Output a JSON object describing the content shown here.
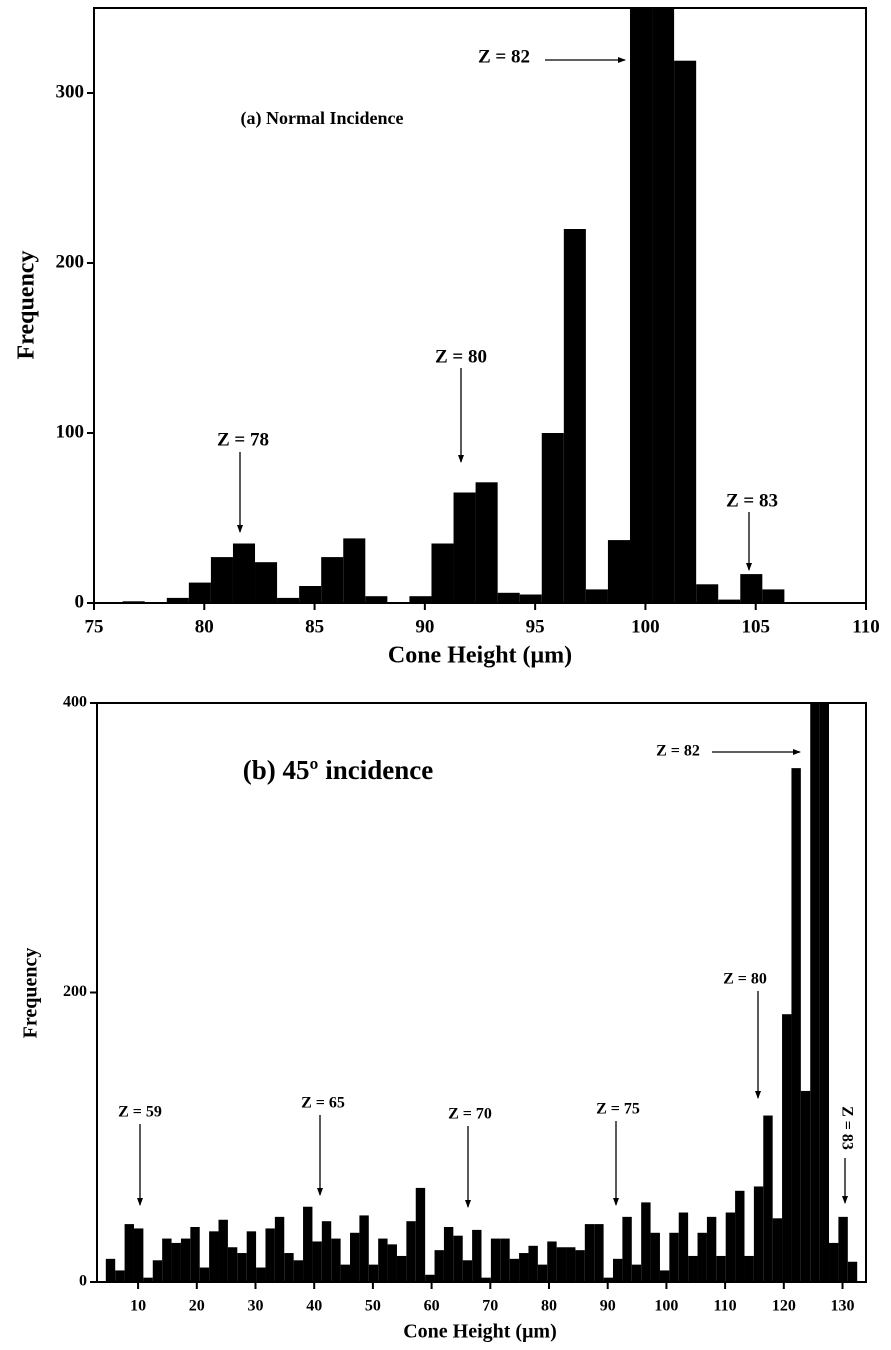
{
  "chart_data": [
    {
      "type": "histogram",
      "title": "(a) Normal Incidence",
      "x_label": "Cone Height (μm)",
      "y_label": "Frequency",
      "bins": [
        76.3,
        77.3,
        78.3,
        79.3,
        80.3,
        81.3,
        82.3,
        83.3,
        84.3,
        85.3,
        86.3,
        87.3,
        88.3,
        89.3,
        90.3,
        91.3,
        92.3,
        93.3,
        94.3,
        95.3,
        96.3,
        97.3,
        98.3,
        99.3,
        100.3,
        101.3,
        102.3,
        103.3,
        104.3,
        105.3,
        106.3
      ],
      "values": [
        1,
        0,
        3,
        12,
        27,
        35,
        24,
        3,
        10,
        27,
        38,
        4,
        0,
        4,
        35,
        65,
        71,
        6,
        5,
        100,
        220,
        8,
        37,
        400,
        380,
        319,
        11,
        2,
        17,
        8
      ],
      "color": "#000000",
      "xlim": [
        75,
        110
      ],
      "ylim": [
        0,
        350
      ],
      "xticks": [
        75,
        80,
        85,
        90,
        95,
        100,
        105,
        110
      ],
      "yticks": [
        0,
        100,
        200,
        300
      ],
      "annotations": [
        "Z = 78",
        "Z = 80",
        "Z = 82",
        "Z = 83"
      ]
    },
    {
      "type": "histogram",
      "title": "(b)   45º incidence",
      "x_label": "Cone Height (μm)",
      "y_label": "Frequency",
      "bins": [
        4.5,
        6.1,
        7.7,
        9.3,
        10.9,
        12.5,
        14.1,
        15.7,
        17.3,
        18.9,
        20.5,
        22.1,
        23.7,
        25.3,
        26.9,
        28.5,
        30.1,
        31.7,
        33.3,
        34.9,
        36.5,
        38.1,
        39.7,
        41.3,
        42.9,
        44.5,
        46.1,
        47.7,
        49.3,
        50.9,
        52.5,
        54.1,
        55.7,
        57.3,
        58.9,
        60.5,
        62.1,
        63.7,
        65.3,
        66.9,
        68.5,
        70.1,
        71.7,
        73.3,
        74.9,
        76.5,
        78.1,
        79.7,
        81.3,
        82.9,
        84.5,
        86.1,
        87.7,
        89.3,
        90.9,
        92.5,
        94.1,
        95.7,
        97.3,
        98.9,
        100.5,
        102.1,
        103.7,
        105.3,
        106.9,
        108.5,
        110.1,
        111.7,
        113.3,
        114.9,
        116.5,
        118.1,
        119.7,
        121.3,
        122.9,
        124.5,
        126.1,
        127.7,
        129.3,
        130.9,
        132.5
      ],
      "values": [
        16,
        8,
        40,
        37,
        3,
        15,
        30,
        27,
        30,
        38,
        10,
        35,
        43,
        24,
        20,
        35,
        10,
        37,
        45,
        20,
        15,
        52,
        28,
        42,
        30,
        12,
        34,
        46,
        12,
        30,
        26,
        18,
        42,
        65,
        5,
        22,
        38,
        32,
        15,
        36,
        3,
        30,
        30,
        16,
        20,
        25,
        12,
        28,
        24,
        24,
        22,
        40,
        40,
        3,
        16,
        45,
        12,
        55,
        34,
        8,
        34,
        48,
        18,
        34,
        45,
        18,
        48,
        63,
        18,
        66,
        115,
        44,
        185,
        355,
        132,
        420,
        420,
        27,
        45,
        14
      ],
      "color": "#000000",
      "xlim": [
        3,
        134
      ],
      "ylim": [
        0,
        400
      ],
      "xticks": [
        10,
        20,
        30,
        40,
        50,
        60,
        70,
        80,
        90,
        100,
        110,
        120,
        130
      ],
      "yticks": [
        0,
        200,
        400
      ],
      "annotations": [
        "Z = 59",
        "Z = 65",
        "Z = 70",
        "Z = 75",
        "Z = 80",
        "Z = 82",
        "Z = 83"
      ]
    }
  ]
}
